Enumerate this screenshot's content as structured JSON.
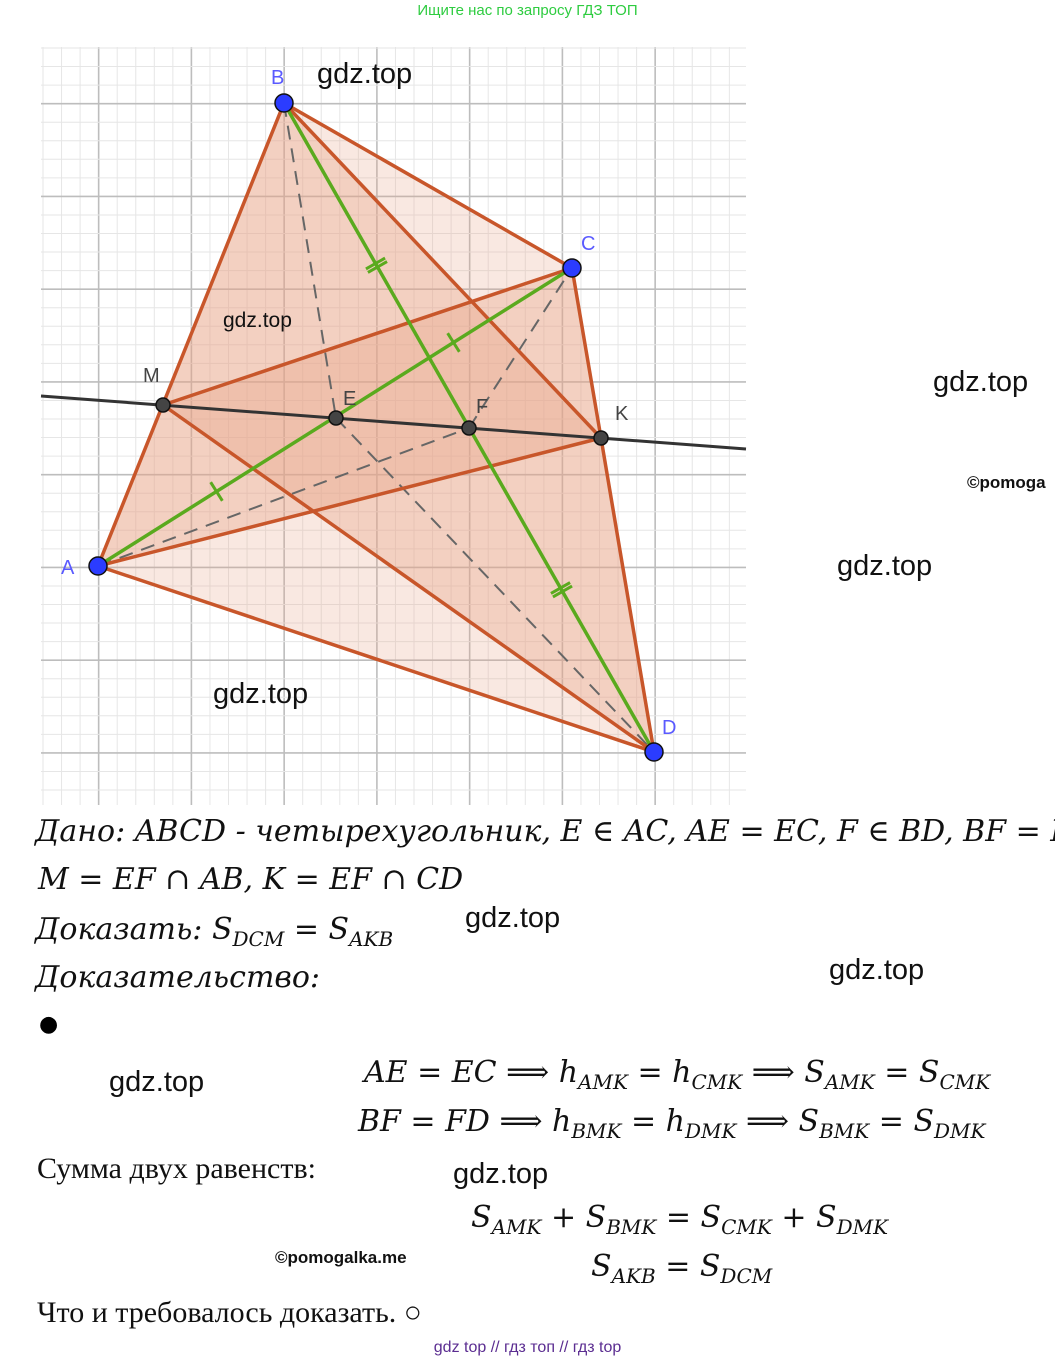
{
  "banner": "Ищите нас по запросу ГДЗ ТОП",
  "diagram": {
    "points": {
      "A": "A",
      "B": "B",
      "C": "C",
      "D": "D",
      "E": "E",
      "F": "F",
      "M": "M",
      "K": "K"
    },
    "colors": {
      "fill": "#e8a488",
      "edge": "#c8562a",
      "green": "#5aaa1e",
      "point": "#2b3cff",
      "grid": "#cfcfcf"
    }
  },
  "watermarks": [
    "gdz.top",
    "gdz.top",
    "gdz.top",
    "gdz.top",
    "gdz.top",
    "gdz.top",
    "gdz.top",
    "gdz.top",
    "gdz.top"
  ],
  "copyright": [
    "©pomogalka.me",
    "©pomoga"
  ],
  "given": {
    "line1_label": "Дано",
    "line1": ": ABCD - четырехугольник, E ∈ AC, AE = EC, F ∈ BD, BF = FD,",
    "line2": "M = EF ∩ AB, K = EF ∩ CD"
  },
  "prove": {
    "label": "Доказать: ",
    "lhs": "S",
    "lhs_sub": "DCM",
    "eq": " = ",
    "rhs": "S",
    "rhs_sub": "AKB"
  },
  "proof_label": "Доказательство:",
  "bullet": "●",
  "eq1": {
    "a": "AE = EC ⟹ h",
    "s1": "AMK",
    "b": " = h",
    "s2": "CMK",
    "c": " ⟹ S",
    "s3": "AMK",
    "d": " = S",
    "s4": "CMK"
  },
  "eq2": {
    "a": "BF = FD ⟹ h",
    "s1": "BMK",
    "b": " = h",
    "s2": "DMK",
    "c": " ⟹ S",
    "s3": "BMK",
    "d": " = S",
    "s4": "DMK"
  },
  "sum_label": "Сумма двух равенств:",
  "eq3": {
    "a": "S",
    "s1": "AMK",
    "b": " + S",
    "s2": "BMK",
    "c": " = S",
    "s3": "CMK",
    "d": " + S",
    "s4": "DMK"
  },
  "eq4": {
    "a": "S",
    "s1": "AKB",
    "b": " = S",
    "s2": "DCM"
  },
  "conclusion": "Что и требовалось доказать. ○",
  "footer": "gdz top  //  гдз топ  //  гдз top"
}
